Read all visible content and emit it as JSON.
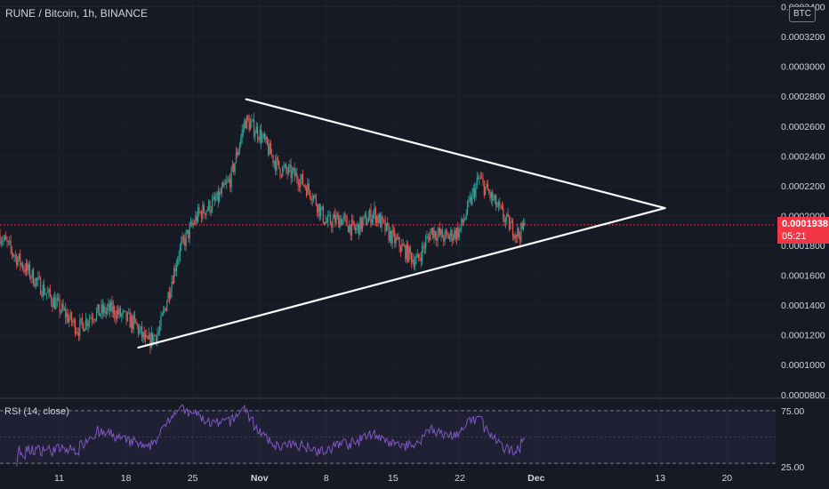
{
  "header": {
    "title": "RUNE / Bitcoin, 1h, BINANCE",
    "unit_button": "BTC"
  },
  "last_price": {
    "value": "0.0001938",
    "countdown": "05:21",
    "color": "#f23645"
  },
  "rsi": {
    "label": "RSI (14, close)",
    "upper_label": "75.00",
    "lower_label": "25.00",
    "line_color": "#7e57c2"
  },
  "colors": {
    "background": "#161a25",
    "up": "#26a69a",
    "down": "#ef5350",
    "trendline": "#ffffff",
    "axis_text": "#d1d4dc"
  },
  "chart_data": [
    {
      "type": "candlestick",
      "title": "RUNE / Bitcoin, 1h, BINANCE",
      "y_ticks": [
        "0.0000800",
        "0.0001000",
        "0.0001200",
        "0.0001400",
        "0.0001600",
        "0.0001800",
        "0.0002000",
        "0.0002200",
        "0.0002400",
        "0.0002600",
        "0.0002800",
        "0.0003000",
        "0.0003200",
        "0.0003400"
      ],
      "ylim": [
        7.75e-05,
        0.0003445
      ],
      "x_ticks": [
        "11",
        "18",
        "25",
        "Nov",
        "8",
        "15",
        "22",
        "Dec",
        "13",
        "20"
      ],
      "x_tick_days": [
        11,
        18,
        25,
        32,
        39,
        46,
        53,
        61,
        74,
        81
      ],
      "xlim": [
        4.8,
        86.1
      ],
      "last_day": 59.9,
      "price_path": [
        {
          "day": 4.8,
          "price": 0.000187
        },
        {
          "day": 6.5,
          "price": 0.000172
        },
        {
          "day": 9.0,
          "price": 0.000153
        },
        {
          "day": 11.5,
          "price": 0.000135
        },
        {
          "day": 13.0,
          "price": 0.000124
        },
        {
          "day": 14.5,
          "price": 0.000134
        },
        {
          "day": 16.5,
          "price": 0.000137
        },
        {
          "day": 19.0,
          "price": 0.000127
        },
        {
          "day": 20.2,
          "price": 0.000114
        },
        {
          "day": 21.5,
          "price": 0.000123
        },
        {
          "day": 23.5,
          "price": 0.000175
        },
        {
          "day": 25.5,
          "price": 0.0002
        },
        {
          "day": 27.5,
          "price": 0.00021
        },
        {
          "day": 29.0,
          "price": 0.000225
        },
        {
          "day": 30.5,
          "price": 0.000264
        },
        {
          "day": 32.0,
          "price": 0.000255
        },
        {
          "day": 34.0,
          "price": 0.000232
        },
        {
          "day": 36.0,
          "price": 0.000226
        },
        {
          "day": 37.5,
          "price": 0.000215
        },
        {
          "day": 39.0,
          "price": 0.000195
        },
        {
          "day": 40.5,
          "price": 0.000198
        },
        {
          "day": 42.0,
          "price": 0.00019
        },
        {
          "day": 44.0,
          "price": 0.000202
        },
        {
          "day": 45.5,
          "price": 0.000188
        },
        {
          "day": 47.0,
          "price": 0.000178
        },
        {
          "day": 48.5,
          "price": 0.000169
        },
        {
          "day": 50.0,
          "price": 0.00019
        },
        {
          "day": 51.5,
          "price": 0.000185
        },
        {
          "day": 53.0,
          "price": 0.00019
        },
        {
          "day": 55.0,
          "price": 0.000225
        },
        {
          "day": 56.5,
          "price": 0.00021
        },
        {
          "day": 58.0,
          "price": 0.000195
        },
        {
          "day": 59.2,
          "price": 0.000187
        },
        {
          "day": 59.9,
          "price": 0.0001938
        }
      ],
      "trendlines": [
        {
          "from": {
            "day": 19.3,
            "price": 0.0001115
          },
          "to": {
            "day": 74.5,
            "price": 0.000205
          }
        },
        {
          "from": {
            "day": 30.6,
            "price": 0.000278
          },
          "to": {
            "day": 74.5,
            "price": 0.000205
          }
        }
      ],
      "last_price": 0.0001938
    },
    {
      "type": "line",
      "title": "RSI (14, close)",
      "y_ticks": [
        "75.00",
        "25.00"
      ],
      "ylim": [
        20,
        85
      ],
      "bands": [
        75,
        25
      ],
      "midline": 50,
      "xlim": [
        4.8,
        86.1
      ],
      "last_day": 59.9
    }
  ]
}
